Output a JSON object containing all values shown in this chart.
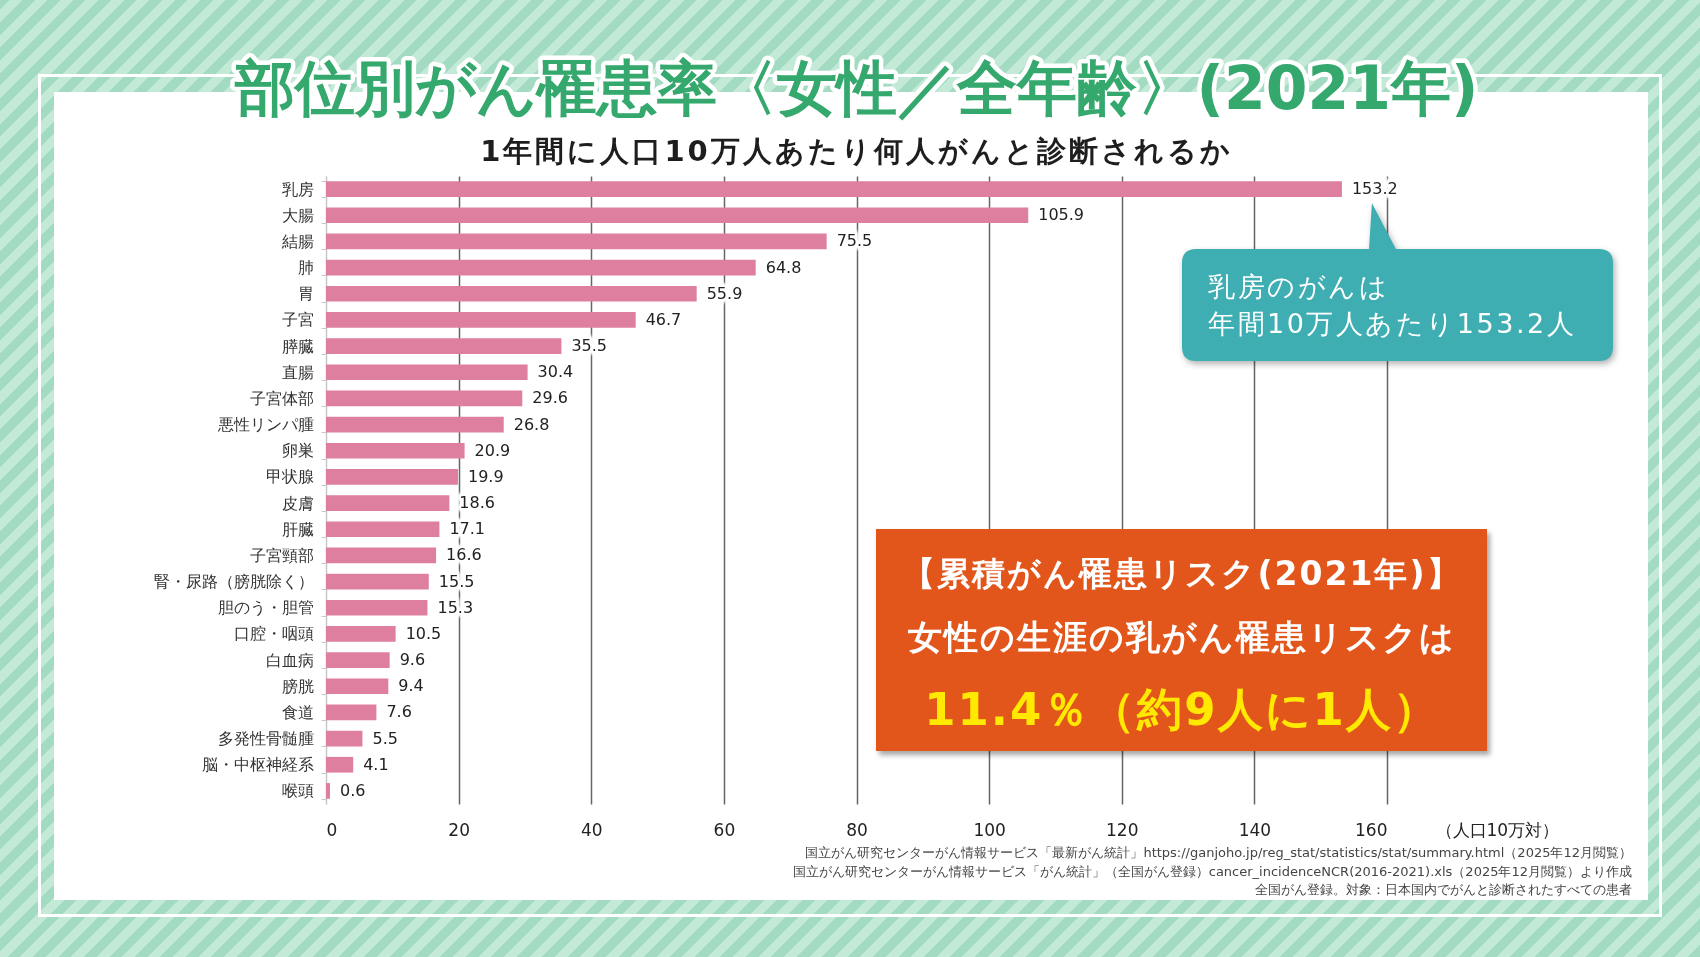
{
  "chart_data": {
    "type": "bar",
    "orientation": "horizontal",
    "title": "部位別がん罹患率〈女性／全年齢〉(2021年)",
    "subtitle": "1年間に人口10万人あたり何人がんと診断されるか",
    "xlabel": "（人口10万対）",
    "categories": [
      "乳房",
      "大腸",
      "結腸",
      "肺",
      "胃",
      "子宮",
      "膵臓",
      "直腸",
      "子宮体部",
      "悪性リンパ腫",
      "卵巣",
      "甲状腺",
      "皮膚",
      "肝臓",
      "子宮頸部",
      "腎・尿路（膀胱除く）",
      "胆のう・胆管",
      "口腔・咽頭",
      "白血病",
      "膀胱",
      "食道",
      "多発性骨髄腫",
      "脳・中枢神経系",
      "喉頭"
    ],
    "values": [
      153.2,
      105.9,
      75.5,
      64.8,
      55.9,
      46.7,
      35.5,
      30.4,
      29.6,
      26.8,
      20.9,
      19.9,
      18.6,
      17.1,
      16.6,
      15.5,
      15.3,
      10.5,
      9.6,
      9.4,
      7.6,
      5.5,
      4.1,
      0.6
    ],
    "color": "#df7f9f",
    "xlim": [
      0,
      160
    ],
    "xticks": [
      0,
      20,
      40,
      60,
      80,
      100,
      120,
      140,
      160
    ],
    "grid": "x",
    "data_labels": true,
    "annotations": [
      {
        "text": "乳房のがんは",
        "x": 153.2,
        "y": "乳房"
      },
      "年間10万人あたり153.2人",
      "【累積がん罹患リスク(2021年)】",
      "女性の生涯の乳がん罹患リスクは",
      "11.4％（約9人に1人）",
      "国立がん研究センターがん情報サービス「最新がん統計」https://ganjoho.jp/reg_stat/statistics/stat/summary.html（2025年12月閲覧）",
      "国立がん研究センターがん情報サービス「がん統計」（全国がん登録）cancer_incidenceNCR(2016-2021).xls（2025年12月閲覧）より作成",
      "全国がん登録。対象：日本国内でがんと診断されたすべての患者"
    ]
  }
}
